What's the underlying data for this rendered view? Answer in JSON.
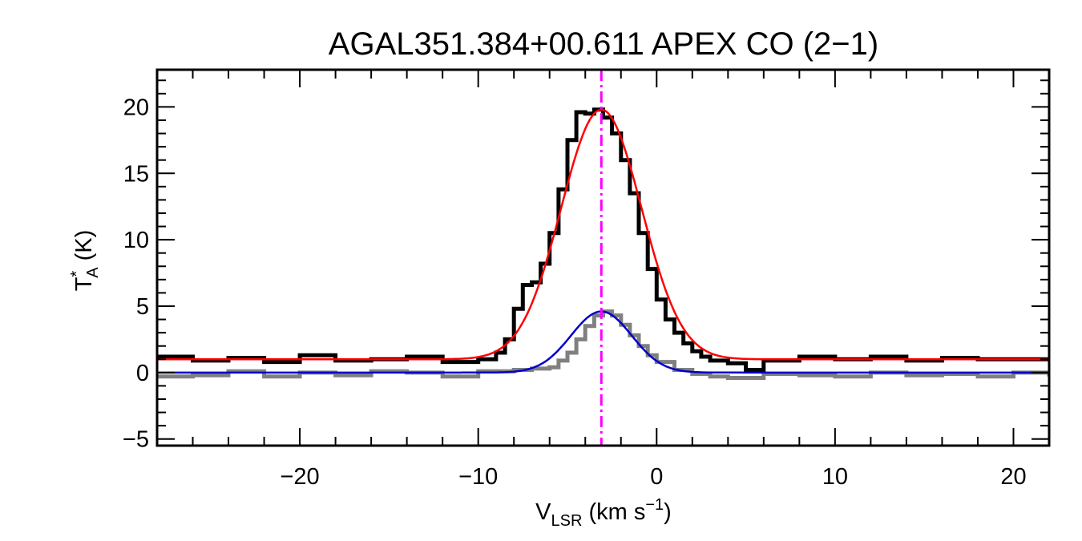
{
  "chart_data": {
    "type": "line",
    "title": "AGAL351.384+00.611   APEX CO (2−1)",
    "xlabel": {
      "main": "V",
      "sub": "LSR",
      "rest": " (km s",
      "sup": "−1",
      "close": ")"
    },
    "ylabel": {
      "main": "T",
      "sup": "*",
      "sub": "A",
      "rest": " (K)"
    },
    "xlim": [
      -28,
      22
    ],
    "ylim": [
      -5.5,
      22.8
    ],
    "x_ticks": [
      -20,
      -10,
      0,
      10,
      20
    ],
    "x_tick_labels": [
      "−20",
      "−10",
      "0",
      "10",
      "20"
    ],
    "y_ticks": [
      -5,
      0,
      5,
      10,
      15,
      20
    ],
    "y_tick_labels": [
      "−5",
      "0",
      "5",
      "10",
      "15",
      "20"
    ],
    "vline_x": -3.1,
    "colors": {
      "observed": "#000000",
      "observed_secondary": "#808080",
      "fit_primary": "#ff0000",
      "fit_secondary": "#0000cc",
      "vline": "#ff00ff"
    },
    "series": [
      {
        "type": "step",
        "color_key": "observed",
        "x": [
          -28,
          -26,
          -24,
          -22,
          -20,
          -18,
          -16,
          -14,
          -12,
          -10,
          -9,
          -8.5,
          -8,
          -7.5,
          -7,
          -6.5,
          -6,
          -5.5,
          -5,
          -4.5,
          -4,
          -3.5,
          -3,
          -2.5,
          -2,
          -1.5,
          -1,
          -0.5,
          0,
          0.5,
          1,
          1.5,
          2,
          2.5,
          3,
          4,
          5,
          6,
          8,
          10,
          12,
          14,
          16,
          18,
          20,
          22
        ],
        "y": [
          1.2,
          0.9,
          1.1,
          0.8,
          1.3,
          0.9,
          1.0,
          1.2,
          0.8,
          1.0,
          1.5,
          2.5,
          4.8,
          6.6,
          6.8,
          8.2,
          10.5,
          13.8,
          17.5,
          19.6,
          19.5,
          19.8,
          19.2,
          18.0,
          16.0,
          13.5,
          10.5,
          7.8,
          5.5,
          4.0,
          3.0,
          2.2,
          1.6,
          1.2,
          0.9,
          0.7,
          0.2,
          0.9,
          1.2,
          1.0,
          1.2,
          0.9,
          1.1,
          1.0,
          1.0,
          1.0
        ]
      },
      {
        "type": "step",
        "color_key": "observed_secondary",
        "x": [
          -28,
          -26,
          -24,
          -22,
          -20,
          -18,
          -16,
          -14,
          -12,
          -10,
          -8,
          -7,
          -6,
          -5.5,
          -5,
          -4.5,
          -4,
          -3.5,
          -3,
          -2.5,
          -2,
          -1.5,
          -1,
          -0.5,
          0,
          1,
          2,
          3,
          4,
          6,
          8,
          10,
          12,
          14,
          16,
          18,
          20,
          22
        ],
        "y": [
          -0.3,
          -0.2,
          0.1,
          -0.3,
          0.0,
          -0.2,
          0.1,
          0.0,
          -0.3,
          0.1,
          0.2,
          0.3,
          0.4,
          0.9,
          1.5,
          2.5,
          3.5,
          4.3,
          4.6,
          4.3,
          3.6,
          2.8,
          2.0,
          1.3,
          0.8,
          0.2,
          -0.1,
          -0.3,
          -0.4,
          -0.1,
          -0.2,
          -0.3,
          0.0,
          -0.2,
          -0.1,
          -0.3,
          0.0,
          -0.3
        ]
      },
      {
        "type": "gaussian",
        "color_key": "fit_primary",
        "baseline": 1.0,
        "amplitude": 18.8,
        "center": -3.1,
        "sigma": 2.25
      },
      {
        "type": "gaussian",
        "color_key": "fit_secondary",
        "baseline": 0.0,
        "amplitude": 4.6,
        "center": -3.1,
        "sigma": 1.7
      }
    ]
  }
}
